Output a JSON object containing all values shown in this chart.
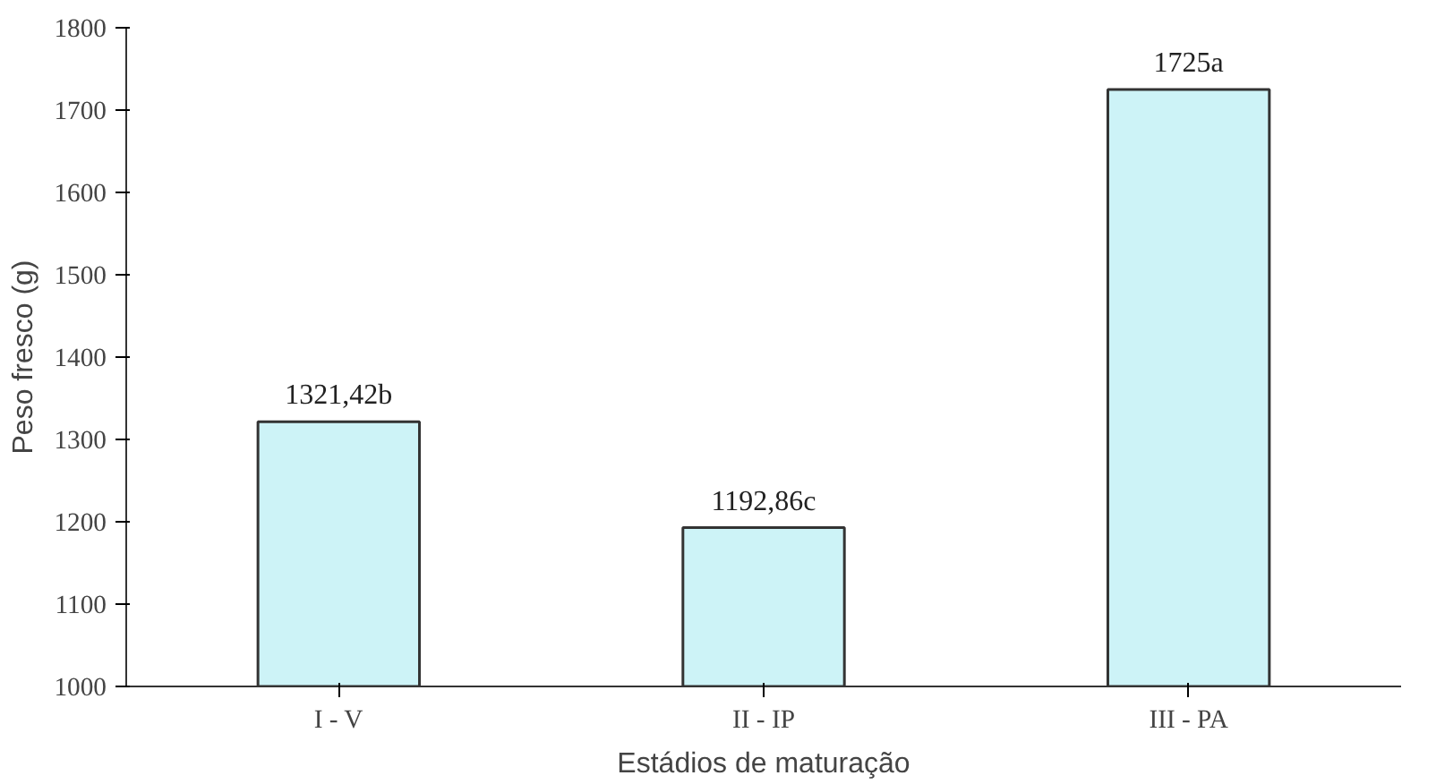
{
  "chart_data": {
    "type": "bar",
    "xlabel": "Estádios de maturação",
    "ylabel": "Peso fresco (g)",
    "categories": [
      "I - V",
      "II - IP",
      "III - PA"
    ],
    "values": [
      1321.42,
      1192.86,
      1725
    ],
    "value_labels": [
      "1321,42b",
      "1192,86c",
      "1725a"
    ],
    "color": "#cdf3f7",
    "ylim": [
      1000,
      1800
    ],
    "yticks": [
      1000,
      1100,
      1200,
      1300,
      1400,
      1500,
      1600,
      1700,
      1800
    ],
    "grid": false
  }
}
